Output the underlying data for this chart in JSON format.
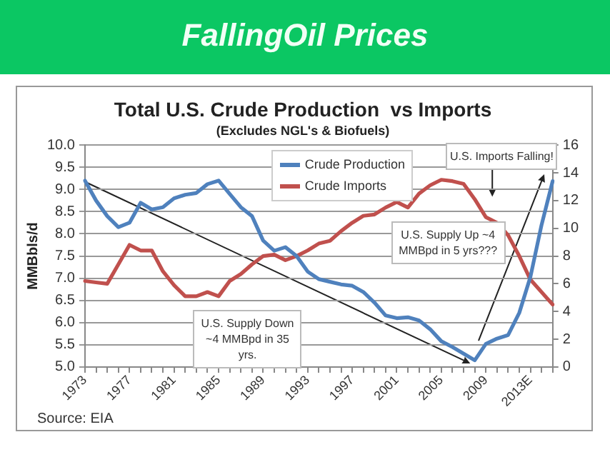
{
  "chart_data": {
    "type": "line",
    "title": "FallingOil Prices",
    "subtitle": "Total U.S. Crude Production  vs Imports",
    "annotations": [
      "(Excludes NGL's & Biofuels)",
      "U.S. Imports Falling!",
      "U.S. Supply Up ~4 MMBpd in 5 yrs???",
      "U.S. Supply Down ~4 MMBpd in 35 yrs.",
      "Source: EIA"
    ],
    "ylabel": "MMBbls/d",
    "categories": [
      "1973",
      null,
      null,
      null,
      "1977",
      null,
      null,
      null,
      "1981",
      null,
      null,
      null,
      "1985",
      null,
      null,
      null,
      "1989",
      null,
      null,
      null,
      "1993",
      null,
      null,
      null,
      "1997",
      null,
      null,
      null,
      "2001",
      null,
      null,
      null,
      "2005",
      null,
      null,
      null,
      "2009",
      null,
      null,
      null,
      "2013E",
      null,
      null
    ],
    "series": [
      {
        "name": "Crude Production",
        "color": "#4f81bd",
        "values": [
          9.2,
          8.75,
          8.4,
          8.15,
          8.25,
          8.7,
          8.55,
          8.6,
          8.8,
          8.88,
          8.92,
          9.12,
          9.2,
          8.9,
          8.6,
          8.4,
          7.85,
          7.62,
          7.7,
          7.5,
          7.15,
          6.98,
          6.92,
          6.86,
          6.83,
          6.69,
          6.45,
          6.16,
          6.1,
          6.12,
          6.05,
          5.85,
          5.58,
          5.45,
          5.3,
          5.15,
          5.52,
          5.64,
          5.72,
          6.22,
          7.03,
          8.2,
          9.19
        ]
      },
      {
        "name": "Crude Imports",
        "color": "#c0504d",
        "axis": "y2",
        "values": [
          6.2,
          6.1,
          6.0,
          7.4,
          8.8,
          8.4,
          8.4,
          6.9,
          5.9,
          5.1,
          5.1,
          5.4,
          5.1,
          6.2,
          6.7,
          7.4,
          8.0,
          8.1,
          7.7,
          8.0,
          8.4,
          8.9,
          9.1,
          9.8,
          10.4,
          10.9,
          11.0,
          11.5,
          11.9,
          11.5,
          12.5,
          13.1,
          13.5,
          13.4,
          13.2,
          12.1,
          10.8,
          10.4,
          9.5,
          8.0,
          6.3,
          5.4,
          4.5
        ]
      }
    ],
    "ylim": [
      5,
      10
    ],
    "yticks": [
      {
        "value": 5,
        "label": "5.0"
      },
      {
        "value": 5.5,
        "label": "5.5"
      },
      {
        "value": 6,
        "label": "6.0"
      },
      {
        "value": 6.5,
        "label": "6.5"
      },
      {
        "value": 7,
        "label": "7.0"
      },
      {
        "value": 7.5,
        "label": "7.5"
      },
      {
        "value": 8,
        "label": "8.0"
      },
      {
        "value": 8.5,
        "label": "8.5"
      },
      {
        "value": 9,
        "label": "9.0"
      },
      {
        "value": 9.5,
        "label": "9.5"
      },
      {
        "value": 10,
        "label": "10.0"
      }
    ],
    "y2lim": [
      0,
      16
    ],
    "y2ticks": [
      0,
      2,
      4,
      6,
      8,
      10,
      12,
      14,
      16
    ],
    "grid": "y",
    "legend": "top",
    "marker": "none",
    "line_style": "solid"
  }
}
